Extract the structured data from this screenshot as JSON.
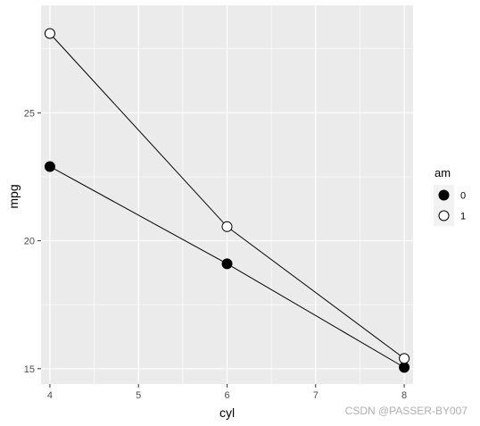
{
  "chart_data": {
    "type": "line",
    "title": "",
    "xlabel": "cyl",
    "ylabel": "mpg",
    "x": [
      4,
      6,
      8
    ],
    "xlim": [
      3.9,
      8.1
    ],
    "ylim": [
      14.4,
      29.2
    ],
    "x_ticks": [
      4,
      5,
      6,
      7,
      8
    ],
    "y_ticks": [
      15,
      20,
      25
    ],
    "grid": true,
    "panel_background": "#ebebeb",
    "grid_color": "#ffffff",
    "legend": {
      "title": "am",
      "placement": "right",
      "entries": [
        {
          "label": "0",
          "fill": "#000000"
        },
        {
          "label": "1",
          "fill": "#ffffff"
        }
      ]
    },
    "series": [
      {
        "name": "0",
        "values": [
          22.9,
          19.1,
          15.05
        ],
        "marker_fill": "#000000"
      },
      {
        "name": "1",
        "values": [
          28.1,
          20.55,
          15.4
        ],
        "marker_fill": "#ffffff"
      }
    ]
  },
  "watermark": "CSDN @PASSER-BY007"
}
